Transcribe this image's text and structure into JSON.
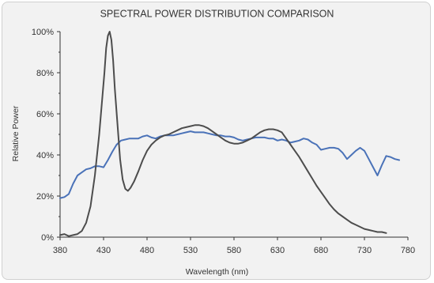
{
  "chart_data": {
    "type": "line",
    "title": "SPECTRAL POWER DISTRIBUTION COMPARISON",
    "xlabel": "Wavelength (nm)",
    "ylabel": "Relative Power",
    "xlim": [
      380,
      780
    ],
    "ylim": [
      0,
      100
    ],
    "x_ticks": [
      "380",
      "430",
      "480",
      "530",
      "580",
      "630",
      "680",
      "730",
      "780"
    ],
    "y_ticks": [
      "0%",
      "20%",
      "40%",
      "60%",
      "80%",
      "100%"
    ],
    "grid": false,
    "legend": "none",
    "series": [
      {
        "color": "#4a72b8",
        "points": [
          [
            380,
            19
          ],
          [
            385,
            19.5
          ],
          [
            390,
            21
          ],
          [
            395,
            26
          ],
          [
            400,
            30
          ],
          [
            405,
            31.5
          ],
          [
            410,
            33
          ],
          [
            415,
            33.5
          ],
          [
            420,
            34.5
          ],
          [
            425,
            34.5
          ],
          [
            430,
            34
          ],
          [
            435,
            37.5
          ],
          [
            440,
            41.5
          ],
          [
            445,
            45
          ],
          [
            450,
            47
          ],
          [
            455,
            47.5
          ],
          [
            460,
            48
          ],
          [
            465,
            48
          ],
          [
            470,
            48
          ],
          [
            475,
            49
          ],
          [
            480,
            49.5
          ],
          [
            485,
            48.5
          ],
          [
            490,
            48
          ],
          [
            495,
            49
          ],
          [
            500,
            49.5
          ],
          [
            505,
            49.5
          ],
          [
            510,
            49.5
          ],
          [
            515,
            50
          ],
          [
            520,
            50.5
          ],
          [
            525,
            51
          ],
          [
            530,
            51.5
          ],
          [
            535,
            51
          ],
          [
            540,
            51
          ],
          [
            545,
            51
          ],
          [
            550,
            50.5
          ],
          [
            555,
            50
          ],
          [
            560,
            49.5
          ],
          [
            565,
            49.5
          ],
          [
            570,
            49
          ],
          [
            575,
            49
          ],
          [
            580,
            48.5
          ],
          [
            585,
            47.5
          ],
          [
            590,
            47
          ],
          [
            595,
            47.5
          ],
          [
            600,
            48
          ],
          [
            605,
            48.5
          ],
          [
            610,
            48.5
          ],
          [
            615,
            48.5
          ],
          [
            620,
            48
          ],
          [
            625,
            48
          ],
          [
            630,
            47
          ],
          [
            635,
            47.5
          ],
          [
            640,
            47
          ],
          [
            645,
            46
          ],
          [
            650,
            46.5
          ],
          [
            655,
            47
          ],
          [
            660,
            48
          ],
          [
            665,
            47.5
          ],
          [
            670,
            46
          ],
          [
            675,
            45
          ],
          [
            680,
            42.5
          ],
          [
            685,
            43
          ],
          [
            690,
            43.5
          ],
          [
            695,
            43.5
          ],
          [
            700,
            43
          ],
          [
            705,
            41
          ],
          [
            710,
            38
          ],
          [
            715,
            40
          ],
          [
            720,
            42
          ],
          [
            725,
            43.5
          ],
          [
            730,
            42
          ],
          [
            735,
            38
          ],
          [
            740,
            34
          ],
          [
            745,
            30
          ],
          [
            750,
            35
          ],
          [
            755,
            39.5
          ],
          [
            760,
            39
          ],
          [
            765,
            38
          ],
          [
            770,
            37.5
          ]
        ]
      },
      {
        "color": "#4d4d4d",
        "points": [
          [
            380,
            1
          ],
          [
            385,
            1.5
          ],
          [
            390,
            0.5
          ],
          [
            395,
            1
          ],
          [
            400,
            1.5
          ],
          [
            405,
            3
          ],
          [
            410,
            7
          ],
          [
            415,
            15
          ],
          [
            420,
            30
          ],
          [
            425,
            50
          ],
          [
            428,
            65
          ],
          [
            431,
            80
          ],
          [
            433,
            92
          ],
          [
            435,
            98
          ],
          [
            437,
            100
          ],
          [
            439,
            96
          ],
          [
            441,
            86
          ],
          [
            443,
            72
          ],
          [
            446,
            55
          ],
          [
            449,
            38
          ],
          [
            452,
            28
          ],
          [
            455,
            23.5
          ],
          [
            458,
            22.5
          ],
          [
            461,
            24
          ],
          [
            465,
            27
          ],
          [
            470,
            32
          ],
          [
            475,
            37.5
          ],
          [
            480,
            42
          ],
          [
            485,
            45
          ],
          [
            490,
            47
          ],
          [
            495,
            48.5
          ],
          [
            500,
            49.5
          ],
          [
            505,
            50
          ],
          [
            510,
            51
          ],
          [
            515,
            52
          ],
          [
            520,
            53
          ],
          [
            525,
            53.5
          ],
          [
            530,
            54
          ],
          [
            535,
            54.5
          ],
          [
            540,
            54.5
          ],
          [
            545,
            54
          ],
          [
            550,
            53
          ],
          [
            555,
            51.5
          ],
          [
            560,
            50
          ],
          [
            565,
            48.5
          ],
          [
            570,
            47
          ],
          [
            575,
            46
          ],
          [
            580,
            45.5
          ],
          [
            585,
            45.5
          ],
          [
            590,
            46
          ],
          [
            595,
            47
          ],
          [
            600,
            48
          ],
          [
            605,
            49.5
          ],
          [
            610,
            51
          ],
          [
            615,
            52
          ],
          [
            620,
            52.5
          ],
          [
            625,
            52.5
          ],
          [
            630,
            52
          ],
          [
            635,
            51
          ],
          [
            640,
            48
          ],
          [
            645,
            45
          ],
          [
            650,
            42
          ],
          [
            655,
            39
          ],
          [
            660,
            35.5
          ],
          [
            665,
            32
          ],
          [
            670,
            28.5
          ],
          [
            675,
            25
          ],
          [
            680,
            22
          ],
          [
            685,
            19
          ],
          [
            690,
            16
          ],
          [
            695,
            13.5
          ],
          [
            700,
            11.5
          ],
          [
            705,
            10
          ],
          [
            710,
            8.5
          ],
          [
            715,
            7
          ],
          [
            720,
            6
          ],
          [
            725,
            5
          ],
          [
            730,
            4
          ],
          [
            735,
            3.5
          ],
          [
            740,
            3
          ],
          [
            745,
            2.5
          ],
          [
            750,
            2.5
          ],
          [
            755,
            2
          ]
        ]
      }
    ]
  }
}
